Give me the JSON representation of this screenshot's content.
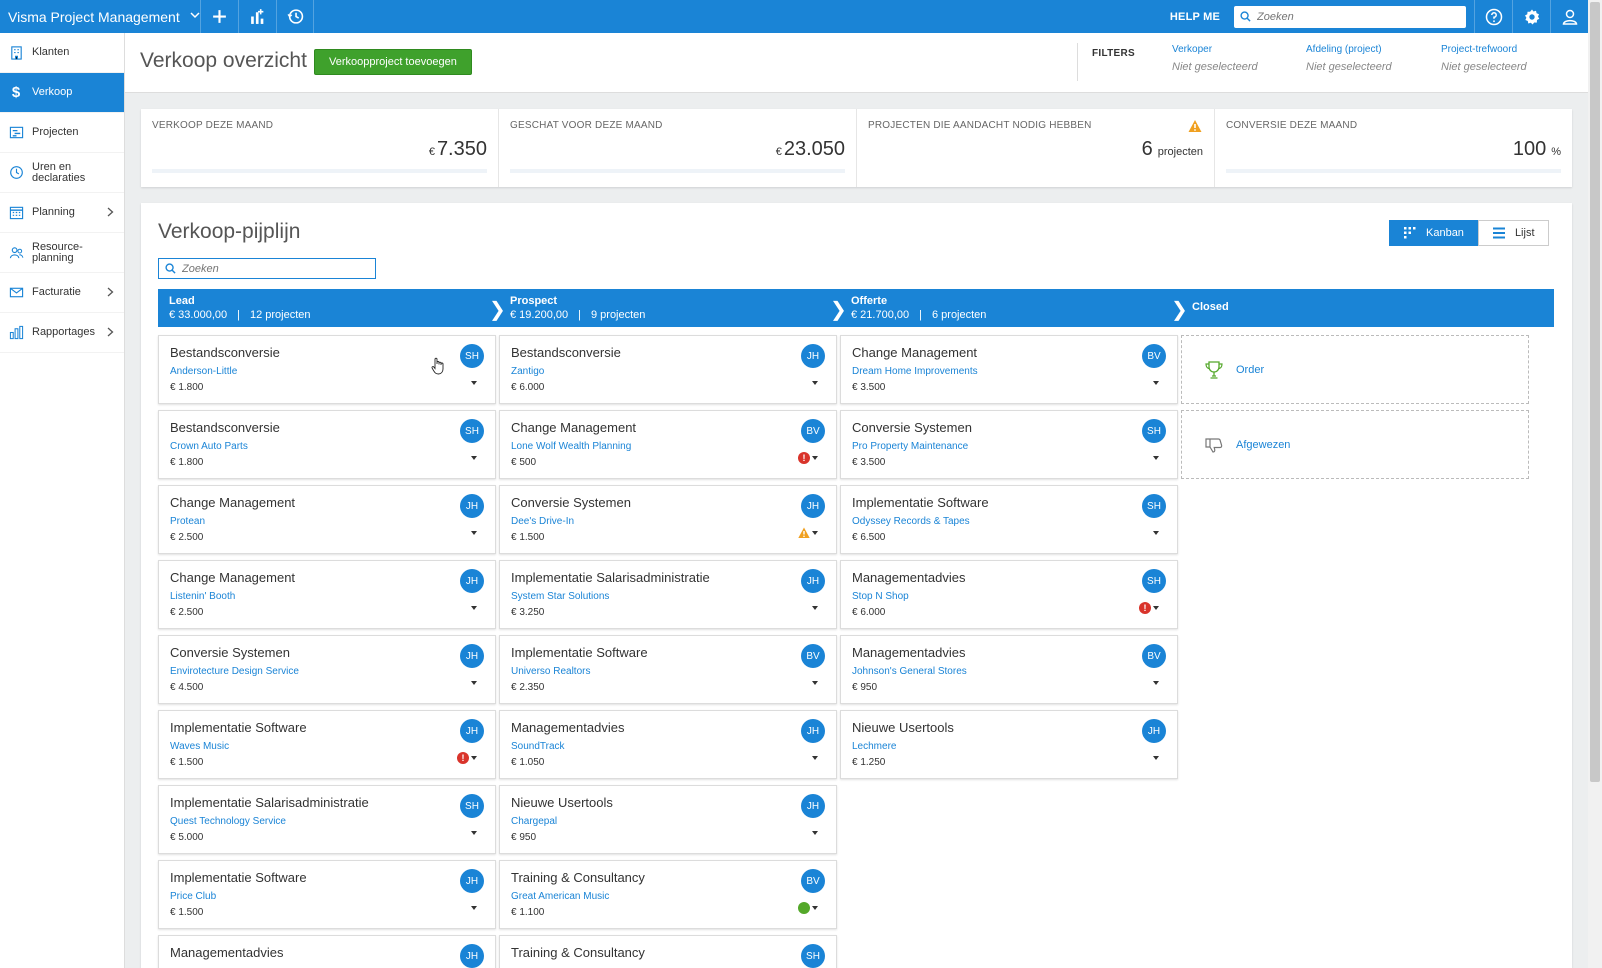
{
  "app": {
    "title": "Visma Project Management",
    "help_label": "HELP ME",
    "search_placeholder": "Zoeken"
  },
  "sidebar": {
    "items": [
      {
        "label": "Klanten",
        "icon": "building-icon",
        "active": false,
        "has_arrow": false
      },
      {
        "label": "Verkoop",
        "icon": "dollar-icon",
        "active": true,
        "has_arrow": false
      },
      {
        "label": "Projecten",
        "icon": "projects-icon",
        "active": false,
        "has_arrow": false
      },
      {
        "label": "Uren en declaraties",
        "icon": "clock-icon",
        "active": false,
        "has_arrow": false
      },
      {
        "label": "Planning",
        "icon": "calendar-icon",
        "active": false,
        "has_arrow": true
      },
      {
        "label": "Resource-planning",
        "icon": "people-icon",
        "active": false,
        "has_arrow": false
      },
      {
        "label": "Facturatie",
        "icon": "envelope-icon",
        "active": false,
        "has_arrow": true
      },
      {
        "label": "Rapportages",
        "icon": "bar-chart-icon",
        "active": false,
        "has_arrow": true
      }
    ]
  },
  "header": {
    "title": "Verkoop overzicht",
    "add_button": "Verkoopproject toevoegen",
    "filters_label": "FILTERS",
    "filters": [
      {
        "name": "Verkoper",
        "value": "Niet geselecteerd"
      },
      {
        "name": "Afdeling (project)",
        "value": "Niet geselecteerd"
      },
      {
        "name": "Project-trefwoord",
        "value": "Niet geselecteerd"
      }
    ]
  },
  "kpis": [
    {
      "label": "VERKOOP DEZE MAAND",
      "prefix": "€",
      "value": "7.350",
      "unit": ""
    },
    {
      "label": "GESCHAT VOOR DEZE MAAND",
      "prefix": "€",
      "value": "23.050",
      "unit": ""
    },
    {
      "label": "PROJECTEN DIE AANDACHT NODIG HEBBEN",
      "prefix": "",
      "value": "6",
      "unit": "projecten"
    },
    {
      "label": "CONVERSIE DEZE MAAND",
      "prefix": "",
      "value": "100",
      "unit": "%"
    }
  ],
  "pipeline": {
    "title": "Verkoop-pijplijn",
    "search_placeholder": "Zoeken",
    "view_kanban": "Kanban",
    "view_list": "Lijst",
    "stages": [
      {
        "name": "Lead",
        "amount": "€ 33.000,00",
        "count": "12 projecten"
      },
      {
        "name": "Prospect",
        "amount": "€ 19.200,00",
        "count": "9 projecten"
      },
      {
        "name": "Offerte",
        "amount": "€ 21.700,00",
        "count": "6 projecten"
      },
      {
        "name": "Closed",
        "amount": "",
        "count": ""
      }
    ],
    "columns": [
      [
        {
          "title": "Bestandsconversie",
          "client": "Anderson-Little",
          "amount": "€ 1.800",
          "avatar": "SH",
          "status": ""
        },
        {
          "title": "Bestandsconversie",
          "client": "Crown Auto Parts",
          "amount": "€ 1.800",
          "avatar": "SH",
          "status": ""
        },
        {
          "title": "Change Management",
          "client": "Protean",
          "amount": "€ 2.500",
          "avatar": "JH",
          "status": ""
        },
        {
          "title": "Change Management",
          "client": "Listenin' Booth",
          "amount": "€ 2.500",
          "avatar": "JH",
          "status": ""
        },
        {
          "title": "Conversie Systemen",
          "client": "Envirotecture Design Service",
          "amount": "€ 4.500",
          "avatar": "JH",
          "status": ""
        },
        {
          "title": "Implementatie Software",
          "client": "Waves Music",
          "amount": "€ 1.500",
          "avatar": "JH",
          "status": "red"
        },
        {
          "title": "Implementatie Salarisadministratie",
          "client": "Quest Technology Service",
          "amount": "€ 5.000",
          "avatar": "SH",
          "status": ""
        },
        {
          "title": "Implementatie Software",
          "client": "Price Club",
          "amount": "€ 1.500",
          "avatar": "JH",
          "status": ""
        },
        {
          "title": "Managementadvies",
          "client": "",
          "amount": "",
          "avatar": "JH",
          "status": ""
        }
      ],
      [
        {
          "title": "Bestandsconversie",
          "client": "Zantigo",
          "amount": "€ 6.000",
          "avatar": "JH",
          "status": ""
        },
        {
          "title": "Change Management",
          "client": "Lone Wolf Wealth Planning",
          "amount": "€ 500",
          "avatar": "BV",
          "status": "red"
        },
        {
          "title": "Conversie Systemen",
          "client": "Dee's Drive-In",
          "amount": "€ 1.500",
          "avatar": "JH",
          "status": "warn"
        },
        {
          "title": "Implementatie Salarisadministratie",
          "client": "System Star Solutions",
          "amount": "€ 3.250",
          "avatar": "JH",
          "status": ""
        },
        {
          "title": "Implementatie Software",
          "client": "Universo Realtors",
          "amount": "€ 2.350",
          "avatar": "BV",
          "status": ""
        },
        {
          "title": "Managementadvies",
          "client": "SoundTrack",
          "amount": "€ 1.050",
          "avatar": "JH",
          "status": ""
        },
        {
          "title": "Nieuwe Usertools",
          "client": "Chargepal",
          "amount": "€ 950",
          "avatar": "JH",
          "status": ""
        },
        {
          "title": "Training & Consultancy",
          "client": "Great American Music",
          "amount": "€ 1.100",
          "avatar": "BV",
          "status": "green"
        },
        {
          "title": "Training & Consultancy",
          "client": "",
          "amount": "",
          "avatar": "SH",
          "status": ""
        }
      ],
      [
        {
          "title": "Change Management",
          "client": "Dream Home Improvements",
          "amount": "€ 3.500",
          "avatar": "BV",
          "status": ""
        },
        {
          "title": "Conversie Systemen",
          "client": "Pro Property Maintenance",
          "amount": "€ 3.500",
          "avatar": "SH",
          "status": ""
        },
        {
          "title": "Implementatie Software",
          "client": "Odyssey Records & Tapes",
          "amount": "€ 6.500",
          "avatar": "SH",
          "status": ""
        },
        {
          "title": "Managementadvies",
          "client": "Stop N Shop",
          "amount": "€ 6.000",
          "avatar": "SH",
          "status": "red"
        },
        {
          "title": "Managementadvies",
          "client": "Johnson's General Stores",
          "amount": "€ 950",
          "avatar": "BV",
          "status": ""
        },
        {
          "title": "Nieuwe Usertools",
          "client": "Lechmere",
          "amount": "€ 1.250",
          "avatar": "JH",
          "status": ""
        }
      ]
    ],
    "closed": [
      {
        "label": "Order",
        "icon": "trophy-icon"
      },
      {
        "label": "Afgewezen",
        "icon": "thumbs-down-icon"
      }
    ]
  },
  "colors": {
    "brand_blue": "#1a84d6",
    "add_green": "#3fa12c",
    "status_red": "#d9342b",
    "status_orange": "#f0a020",
    "status_green": "#54a82a"
  }
}
